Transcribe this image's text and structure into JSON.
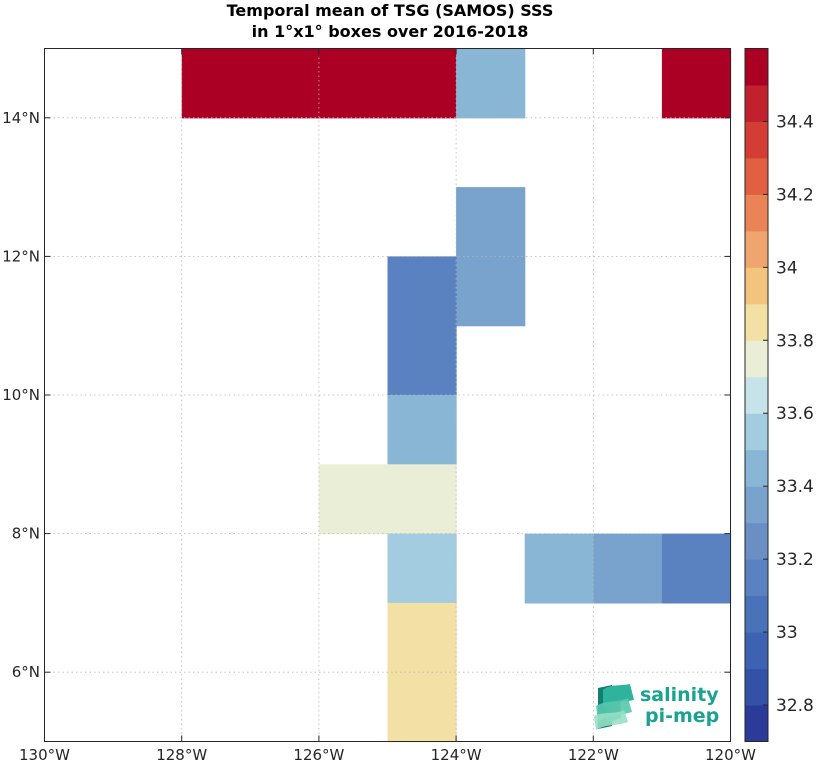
{
  "chart_data": {
    "type": "heatmap",
    "title_lines": [
      "Temporal mean of TSG (SAMOS) SSS",
      "in 1°x1° boxes over 2016-2018"
    ],
    "xlim": [
      -130,
      -120
    ],
    "ylim": [
      5,
      15
    ],
    "x_ticks": [
      {
        "value": -130,
        "label": "130°W"
      },
      {
        "value": -128,
        "label": "128°W"
      },
      {
        "value": -126,
        "label": "126°W"
      },
      {
        "value": -124,
        "label": "124°W"
      },
      {
        "value": -122,
        "label": "122°W"
      },
      {
        "value": -120,
        "label": "120°W"
      }
    ],
    "y_ticks": [
      {
        "value": 6,
        "label": "6°N"
      },
      {
        "value": 8,
        "label": "8°N"
      },
      {
        "value": 10,
        "label": "10°N"
      },
      {
        "value": 12,
        "label": "12°N"
      },
      {
        "value": 14,
        "label": "14°N"
      }
    ],
    "grid": true,
    "cells": [
      {
        "lon": -128,
        "lat": 14,
        "value": 34.55
      },
      {
        "lon": -127,
        "lat": 14,
        "value": 34.55
      },
      {
        "lon": -126,
        "lat": 14,
        "value": 34.55
      },
      {
        "lon": -125,
        "lat": 14,
        "value": 34.55
      },
      {
        "lon": -124,
        "lat": 14,
        "value": 33.42
      },
      {
        "lon": -121,
        "lat": 14,
        "value": 34.55
      },
      {
        "lon": -124,
        "lat": 12,
        "value": 33.32
      },
      {
        "lon": -124,
        "lat": 11,
        "value": 33.32
      },
      {
        "lon": -125,
        "lat": 11,
        "value": 33.18
      },
      {
        "lon": -125,
        "lat": 10,
        "value": 33.18
      },
      {
        "lon": -125,
        "lat": 9,
        "value": 33.42
      },
      {
        "lon": -126,
        "lat": 8,
        "value": 33.78
      },
      {
        "lon": -125,
        "lat": 8,
        "value": 33.78
      },
      {
        "lon": -125,
        "lat": 7,
        "value": 33.55
      },
      {
        "lon": -123,
        "lat": 7,
        "value": 33.42
      },
      {
        "lon": -122,
        "lat": 7,
        "value": 33.32
      },
      {
        "lon": -121,
        "lat": 7,
        "value": 33.18
      },
      {
        "lon": -125,
        "lat": 6,
        "value": 33.88
      },
      {
        "lon": -125,
        "lat": 5,
        "value": 33.88
      }
    ],
    "colorbar": {
      "min": 32.7,
      "max": 34.6,
      "ticks": [
        {
          "value": 32.8,
          "label": "32.8"
        },
        {
          "value": 33.0,
          "label": "33"
        },
        {
          "value": 33.2,
          "label": "33.2"
        },
        {
          "value": 33.4,
          "label": "33.4"
        },
        {
          "value": 33.6,
          "label": "33.6"
        },
        {
          "value": 33.8,
          "label": "33.8"
        },
        {
          "value": 34.0,
          "label": "34"
        },
        {
          "value": 34.2,
          "label": "34.2"
        },
        {
          "value": 34.4,
          "label": "34.4"
        }
      ],
      "colors": [
        "#2c3b9a",
        "#3451a8",
        "#3d62b1",
        "#4a72b9",
        "#5a82c1",
        "#6b8fc5",
        "#79a3cc",
        "#89b6d5",
        "#a3cce0",
        "#c7e3ea",
        "#eaeed6",
        "#f3e0a4",
        "#f3c47e",
        "#f0a56f",
        "#ea8456",
        "#e06041",
        "#d33d34",
        "#c0212d",
        "#ab0024"
      ]
    }
  },
  "logo": {
    "line1": "salinity",
    "line2": "pi-mep"
  }
}
